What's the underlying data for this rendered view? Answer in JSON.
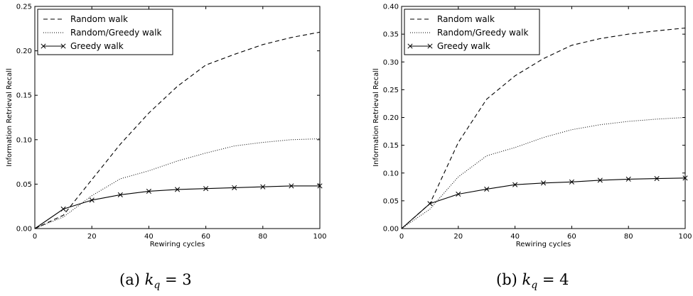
{
  "chart_data": [
    {
      "type": "line",
      "caption": "(a)",
      "caption_math": "k_q = 3",
      "xlabel": "Rewiring cycles",
      "ylabel": "Information Retrieval Recall",
      "xlim": [
        0,
        100
      ],
      "ylim": [
        0,
        0.25
      ],
      "xticks": [
        "0",
        "20",
        "40",
        "60",
        "80",
        "100"
      ],
      "yticks": [
        "0.00",
        "0.05",
        "0.10",
        "0.15",
        "0.20",
        "0.25"
      ],
      "grid": false,
      "legend": "top-left",
      "x": [
        0,
        10,
        20,
        30,
        40,
        50,
        60,
        70,
        80,
        90,
        100
      ],
      "series": [
        {
          "name": "Random walk",
          "style": "dashed",
          "values": [
            0,
            0.015,
            0.055,
            0.095,
            0.13,
            0.16,
            0.184,
            0.196,
            0.207,
            0.215,
            0.221
          ]
        },
        {
          "name": "Random/Greedy walk",
          "style": "dotted",
          "values": [
            0,
            0.013,
            0.037,
            0.056,
            0.065,
            0.076,
            0.085,
            0.093,
            0.097,
            0.1,
            0.101
          ]
        },
        {
          "name": "Greedy walk",
          "style": "solid-x",
          "values": [
            0,
            0.022,
            0.032,
            0.038,
            0.042,
            0.044,
            0.045,
            0.046,
            0.047,
            0.048,
            0.048
          ]
        }
      ]
    },
    {
      "type": "line",
      "caption": "(b)",
      "caption_math": "k_q = 4",
      "xlabel": "Rewiring cycles",
      "ylabel": "Information Retrieval Recall",
      "xlim": [
        0,
        100
      ],
      "ylim": [
        0,
        0.4
      ],
      "xticks": [
        "0",
        "20",
        "40",
        "60",
        "80",
        "100"
      ],
      "yticks": [
        "0.00",
        "0.05",
        "0.10",
        "0.15",
        "0.20",
        "0.25",
        "0.30",
        "0.35",
        "0.40"
      ],
      "grid": false,
      "legend": "top-left",
      "x": [
        0,
        10,
        20,
        30,
        40,
        50,
        60,
        70,
        80,
        90,
        100
      ],
      "series": [
        {
          "name": "Random walk",
          "style": "dashed",
          "values": [
            0,
            0.045,
            0.155,
            0.233,
            0.275,
            0.306,
            0.33,
            0.342,
            0.35,
            0.356,
            0.361
          ]
        },
        {
          "name": "Random/Greedy walk",
          "style": "dotted",
          "values": [
            0,
            0.035,
            0.093,
            0.131,
            0.146,
            0.164,
            0.178,
            0.187,
            0.193,
            0.197,
            0.2
          ]
        },
        {
          "name": "Greedy walk",
          "style": "solid-x",
          "values": [
            0,
            0.045,
            0.062,
            0.071,
            0.079,
            0.082,
            0.084,
            0.087,
            0.089,
            0.09,
            0.091
          ]
        }
      ]
    }
  ]
}
